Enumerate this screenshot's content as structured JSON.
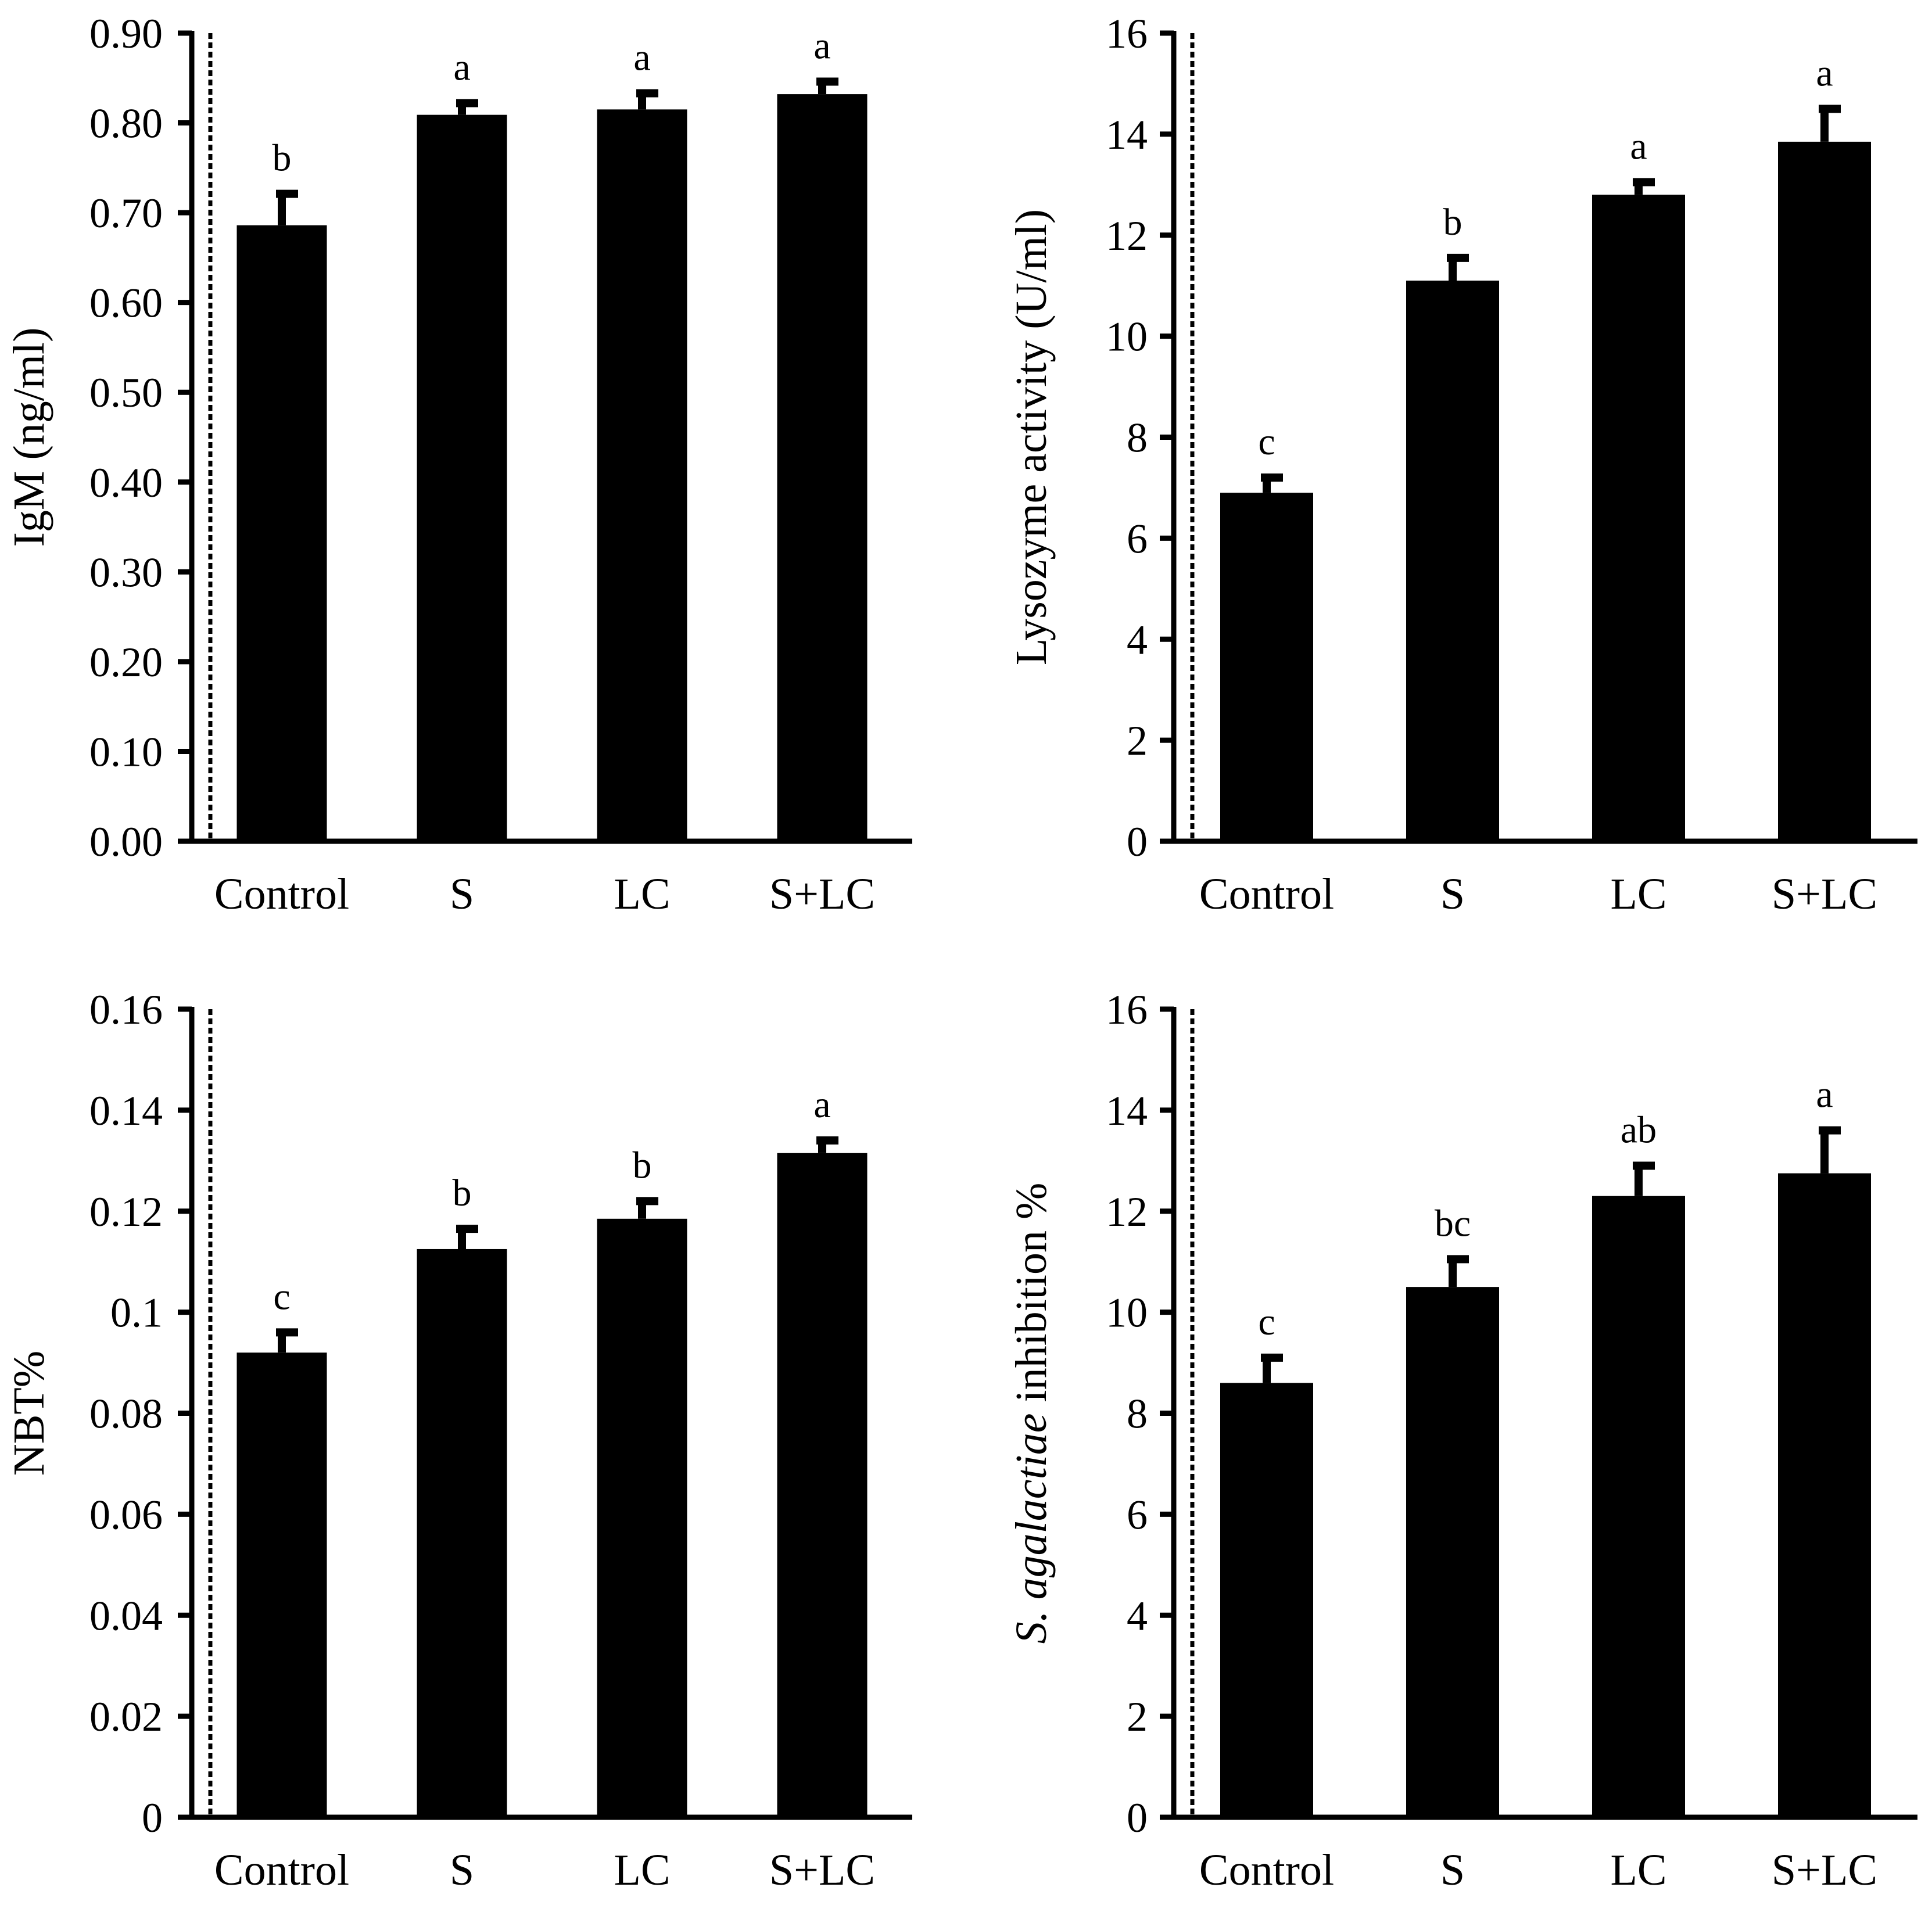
{
  "figure": {
    "colors": {
      "bar": "#000000",
      "axis": "#000000",
      "background": "#ffffff"
    }
  },
  "chart_data": [
    {
      "id": "igm",
      "type": "bar",
      "title": "",
      "xlabel": "",
      "ylabel": "IgM (ng/ml)",
      "categories": [
        "Control",
        "S",
        "LC",
        "S+LC"
      ],
      "values": [
        0.686,
        0.809,
        0.815,
        0.832
      ],
      "errors": [
        0.035,
        0.013,
        0.018,
        0.014
      ],
      "significance": [
        "b",
        "a",
        "a",
        "a"
      ],
      "ylim": [
        0,
        0.9
      ],
      "yticks": [
        "0.00",
        "0.10",
        "0.20",
        "0.30",
        "0.40",
        "0.50",
        "0.60",
        "0.70",
        "0.80",
        "0.90"
      ],
      "grid": false
    },
    {
      "id": "lysozyme",
      "type": "bar",
      "title": "",
      "xlabel": "",
      "ylabel": "Lysozyme activity (U/ml)",
      "categories": [
        "Control",
        "S",
        "LC",
        "S+LC"
      ],
      "values": [
        6.9,
        11.1,
        12.8,
        13.85
      ],
      "errors": [
        0.3,
        0.45,
        0.25,
        0.65
      ],
      "significance": [
        "c",
        "b",
        "a",
        "a"
      ],
      "ylim": [
        0,
        16
      ],
      "yticks": [
        "0",
        "2",
        "4",
        "6",
        "8",
        "10",
        "12",
        "14",
        "16"
      ],
      "grid": false
    },
    {
      "id": "nbt",
      "type": "bar",
      "title": "",
      "xlabel": "",
      "ylabel": "NBT%",
      "categories": [
        "Control",
        "S",
        "LC",
        "S+LC"
      ],
      "values": [
        0.092,
        0.1125,
        0.1185,
        0.1315
      ],
      "errors": [
        0.004,
        0.004,
        0.0035,
        0.0025
      ],
      "significance": [
        "c",
        "b",
        "b",
        "a"
      ],
      "ylim": [
        0,
        0.16
      ],
      "yticks": [
        "0",
        "0.02",
        "0.04",
        "0.06",
        "0.08",
        "0.1",
        "0.12",
        "0.14",
        "0.16"
      ],
      "grid": false
    },
    {
      "id": "inhibition",
      "type": "bar",
      "title": "",
      "xlabel": "",
      "ylabel_italic": "S. agalactiae",
      "ylabel_rest": "inhibition %",
      "categories": [
        "Control",
        "S",
        "LC",
        "S+LC"
      ],
      "values": [
        8.6,
        10.5,
        12.3,
        12.75
      ],
      "errors": [
        0.5,
        0.55,
        0.6,
        0.85
      ],
      "significance": [
        "c",
        "bc",
        "ab",
        "a"
      ],
      "ylim": [
        0,
        16
      ],
      "yticks": [
        "0",
        "2",
        "4",
        "6",
        "8",
        "10",
        "12",
        "14",
        "16"
      ],
      "grid": false
    }
  ]
}
